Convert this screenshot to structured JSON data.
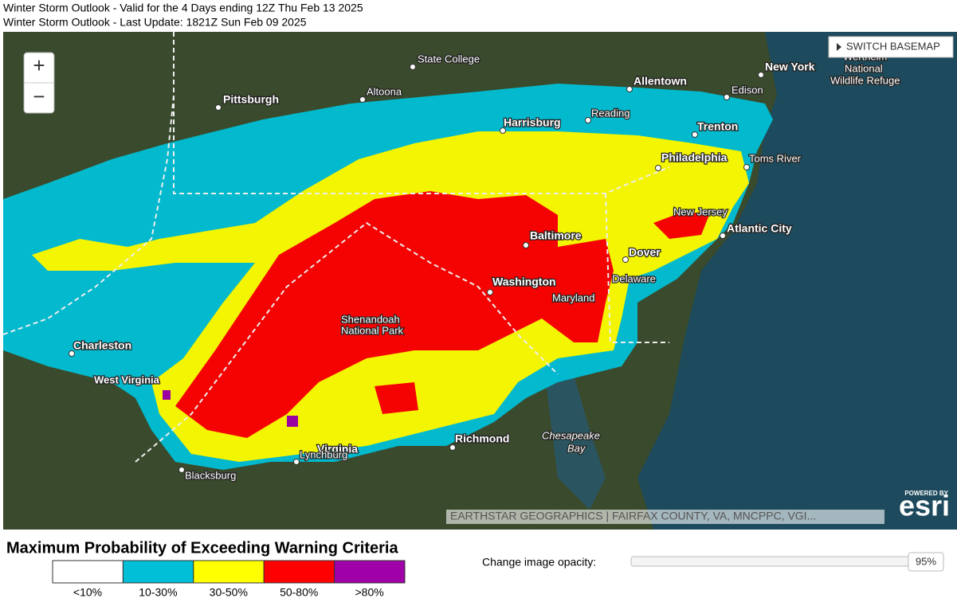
{
  "header": {
    "line1": "Winter Storm Outlook - Valid for the 4 Days ending 12Z Thu Feb 13 2025",
    "line2": "Winter Storm Outlook - Last Update: 1821Z Sun Feb 09 2025"
  },
  "map": {
    "controls": {
      "zoom_in": "+",
      "zoom_out": "−",
      "basemap_button": "SWITCH BASEMAP"
    },
    "labels": [
      {
        "text": "State College"
      },
      {
        "text": "Altoona"
      },
      {
        "text": "Pittsburgh"
      },
      {
        "text": "Allentown"
      },
      {
        "text": "New York"
      },
      {
        "text": "Edison"
      },
      {
        "text": "Wertheim"
      },
      {
        "text": "National"
      },
      {
        "text": "Wildlife Refuge"
      },
      {
        "text": "Harrisburg"
      },
      {
        "text": "Reading"
      },
      {
        "text": "Trenton"
      },
      {
        "text": "Philadelphia"
      },
      {
        "text": "Toms River"
      },
      {
        "text": "New Jersey"
      },
      {
        "text": "Atlantic City"
      },
      {
        "text": "Baltimore"
      },
      {
        "text": "Dover"
      },
      {
        "text": "Delaware"
      },
      {
        "text": "Washington"
      },
      {
        "text": "Maryland"
      },
      {
        "text": "Shenandoah"
      },
      {
        "text": "National Park"
      },
      {
        "text": "Charleston"
      },
      {
        "text": "West Virginia"
      },
      {
        "text": "Richmond"
      },
      {
        "text": "Virginia"
      },
      {
        "text": "Lynchburg"
      },
      {
        "text": "Blacksburg"
      },
      {
        "text": "Chesapeake"
      },
      {
        "text": "Bay"
      }
    ],
    "attribution": "EARTHSTAR GEOGRAPHICS | FAIRFAX COUNTY, VA, MNCPPC, VGI...",
    "logo": {
      "small": "POWERED BY",
      "big": "esri"
    }
  },
  "legend": {
    "title": "Maximum Probability of Exceeding Warning Criteria",
    "items": [
      {
        "label": "<10%",
        "color": "#ffffff"
      },
      {
        "label": "10-30%",
        "color": "#00bfd6"
      },
      {
        "label": "30-50%",
        "color": "#ffff00"
      },
      {
        "label": "50-80%",
        "color": "#ff0000"
      },
      {
        "label": ">80%",
        "color": "#a000a8"
      }
    ]
  },
  "opacity": {
    "label": "Change image opacity:",
    "value": "95%"
  }
}
